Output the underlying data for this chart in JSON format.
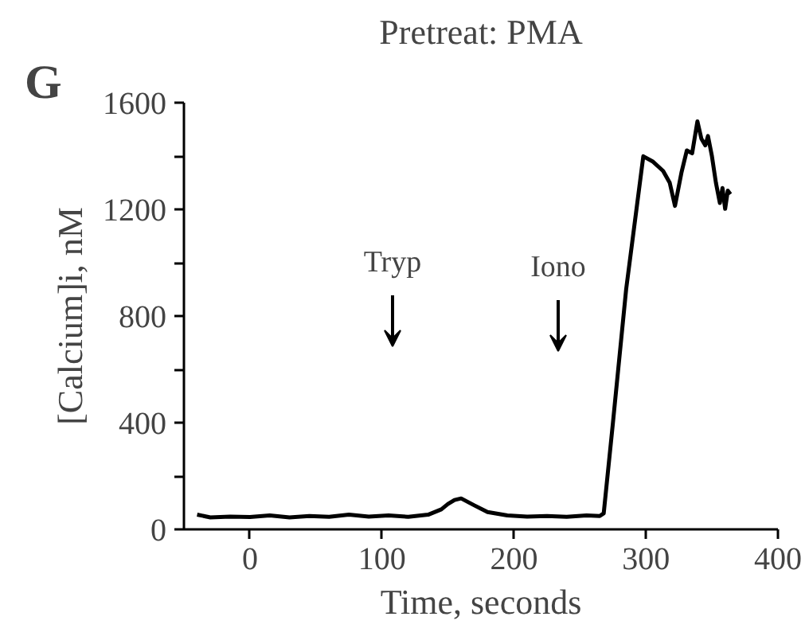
{
  "chart_data": {
    "type": "line",
    "title": "Pretreat: PMA",
    "xlabel": "Time, seconds",
    "ylabel": "[Calcium]i, nM",
    "annotations": [
      "G",
      "Tryp",
      "Iono"
    ],
    "series": [
      {
        "color": "#000000",
        "x": [
          -40,
          -30,
          -15,
          0,
          15,
          30,
          45,
          60,
          75,
          90,
          105,
          120,
          135,
          145,
          150,
          155,
          160,
          170,
          180,
          195,
          210,
          225,
          240,
          255,
          265,
          268,
          275,
          285,
          298,
          305,
          313,
          318,
          322,
          327,
          331,
          335,
          339,
          342,
          345,
          347,
          350,
          353,
          356,
          358,
          360,
          362,
          364
        ],
        "values": [
          55,
          45,
          48,
          46,
          52,
          45,
          50,
          47,
          55,
          48,
          52,
          47,
          55,
          75,
          95,
          110,
          116,
          90,
          65,
          52,
          48,
          50,
          47,
          52,
          50,
          60,
          400,
          900,
          1399,
          1380,
          1344,
          1300,
          1213,
          1340,
          1421,
          1410,
          1530,
          1465,
          1440,
          1475,
          1399,
          1300,
          1224,
          1280,
          1202,
          1270,
          1257
        ]
      }
    ],
    "xlim": [
      -50,
      400
    ],
    "ylim": [
      0,
      1600
    ],
    "xticks": [
      0,
      100,
      200,
      300,
      400
    ],
    "yticks": [
      0,
      {
        "value": 200,
        "label": null
      },
      400,
      {
        "value": 600,
        "label": null
      },
      800,
      {
        "value": 1000,
        "label": null
      },
      1200,
      {
        "value": 1400,
        "label": null
      },
      1600
    ],
    "grid": false
  }
}
